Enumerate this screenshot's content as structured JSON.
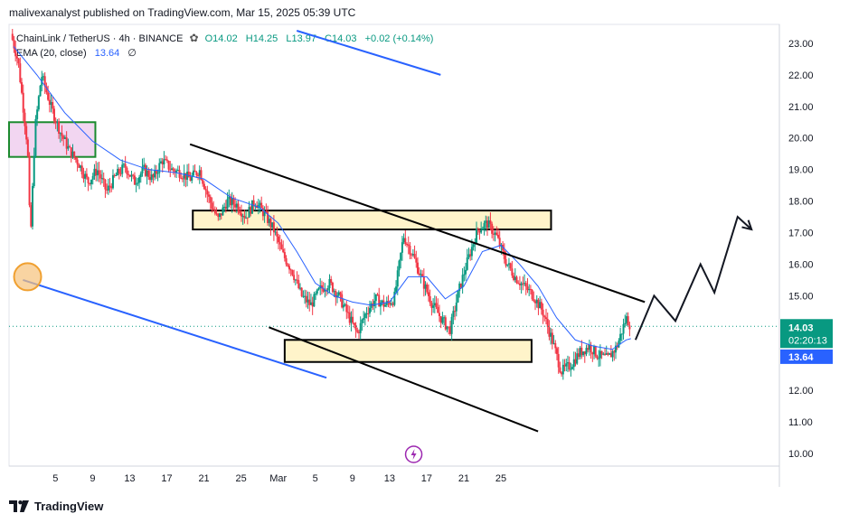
{
  "header": {
    "published": "malivexanalyst published on TradingView.com, Mar 15, 2025 05:39 UTC"
  },
  "legend": {
    "symbol": "ChainLink / TetherUS · 4h · BINANCE",
    "open": "O14.02",
    "high": "H14.25",
    "low": "L13.97",
    "close": "C14.03",
    "change": "+0.02 (+0.14%)",
    "ema_label": "EMA (20, close)",
    "ema_value": "13.64",
    "ema_suffix": "∅"
  },
  "price_axis": {
    "ticks": [
      "23.00",
      "22.00",
      "21.00",
      "20.00",
      "19.00",
      "18.00",
      "17.00",
      "16.00",
      "15.00",
      "14.00",
      "13.00",
      "12.00",
      "11.00",
      "10.00"
    ],
    "last_price": "14.03",
    "countdown": "02:20:13",
    "ema_tag": "13.64"
  },
  "time_axis": {
    "ticks": [
      "5",
      "9",
      "13",
      "17",
      "21",
      "25",
      "Mar",
      "5",
      "9",
      "13",
      "17",
      "21",
      "25"
    ]
  },
  "footer": {
    "brand": "TradingView"
  },
  "colors": {
    "up": "#089981",
    "down": "#f23645",
    "ema": "#2962ff",
    "channel": "#2962ff",
    "zone_fill": "#fff3c4",
    "supply_fill": "#f1d1f0",
    "supply_border": "#1b8a2e",
    "price_tag": "#089981",
    "ema_tag": "#2962ff"
  },
  "chart_data": {
    "type": "candlestick",
    "symbol": "ChainLink / TetherUS",
    "interval": "4h",
    "exchange": "BINANCE",
    "ylim": [
      9.6,
      23.6
    ],
    "y_ticks": [
      10,
      11,
      12,
      13,
      14,
      15,
      16,
      17,
      18,
      19,
      20,
      21,
      22,
      23
    ],
    "x_range_days": [
      0,
      83
    ],
    "x_ticks": [
      {
        "label": "5",
        "day": 5
      },
      {
        "label": "9",
        "day": 9
      },
      {
        "label": "13",
        "day": 13
      },
      {
        "label": "17",
        "day": 17
      },
      {
        "label": "21",
        "day": 21
      },
      {
        "label": "25",
        "day": 25
      },
      {
        "label": "Mar",
        "day": 29
      },
      {
        "label": "5",
        "day": 33
      },
      {
        "label": "9",
        "day": 37
      },
      {
        "label": "13",
        "day": 41
      },
      {
        "label": "17",
        "day": 45
      },
      {
        "label": "21",
        "day": 49
      },
      {
        "label": "25",
        "day": 53
      }
    ],
    "price_path": [
      [
        0.2,
        23.3
      ],
      [
        1,
        22.4
      ],
      [
        2,
        19.7
      ],
      [
        2.3,
        16.7
      ],
      [
        2.8,
        20.3
      ],
      [
        3.5,
        22.0
      ],
      [
        4.5,
        21.0
      ],
      [
        5.5,
        20.2
      ],
      [
        6.5,
        19.6
      ],
      [
        7.5,
        19.2
      ],
      [
        8.5,
        18.6
      ],
      [
        9.5,
        19.0
      ],
      [
        10.5,
        18.3
      ],
      [
        11.5,
        18.8
      ],
      [
        12.5,
        19.1
      ],
      [
        13.5,
        18.6
      ],
      [
        14.5,
        19.0
      ],
      [
        15.5,
        18.7
      ],
      [
        16.5,
        19.3
      ],
      [
        17.5,
        19.0
      ],
      [
        18.5,
        18.9
      ],
      [
        19.5,
        18.7
      ],
      [
        20.5,
        19.0
      ],
      [
        21.5,
        18.1
      ],
      [
        22.5,
        17.4
      ],
      [
        23.5,
        18.0
      ],
      [
        24.5,
        17.9
      ],
      [
        25.5,
        17.5
      ],
      [
        26.5,
        18.0
      ],
      [
        27.5,
        17.6
      ],
      [
        28.5,
        17.1
      ],
      [
        29.5,
        16.3
      ],
      [
        30.5,
        15.8
      ],
      [
        31.5,
        15.0
      ],
      [
        32.5,
        14.7
      ],
      [
        33.5,
        15.2
      ],
      [
        34.5,
        15.4
      ],
      [
        35.5,
        15.0
      ],
      [
        36.5,
        14.4
      ],
      [
        37.5,
        13.8
      ],
      [
        38.5,
        14.5
      ],
      [
        39.5,
        14.9
      ],
      [
        40.5,
        14.7
      ],
      [
        41.5,
        14.9
      ],
      [
        42.5,
        16.9
      ],
      [
        43.5,
        16.3
      ],
      [
        44.5,
        15.5
      ],
      [
        45.5,
        14.8
      ],
      [
        46.5,
        14.3
      ],
      [
        47.5,
        13.9
      ],
      [
        48.5,
        15.2
      ],
      [
        49.5,
        16.2
      ],
      [
        50.5,
        17.1
      ],
      [
        51.5,
        17.3
      ],
      [
        52.5,
        16.9
      ],
      [
        53.5,
        16.1
      ],
      [
        54.5,
        15.6
      ],
      [
        55.5,
        15.3
      ],
      [
        56.5,
        15.0
      ],
      [
        57.5,
        14.5
      ],
      [
        58.5,
        13.6
      ],
      [
        59.5,
        12.6
      ],
      [
        60.5,
        12.8
      ],
      [
        61.5,
        13.2
      ],
      [
        62.5,
        13.4
      ],
      [
        63.5,
        13.1
      ],
      [
        64.5,
        13.0
      ],
      [
        65.5,
        13.4
      ],
      [
        66.5,
        14.3
      ],
      [
        67.0,
        14.03
      ]
    ],
    "ema": {
      "label": "EMA (20, close)",
      "last": 13.64,
      "path": [
        [
          0.5,
          22.9
        ],
        [
          3,
          22.0
        ],
        [
          6,
          20.8
        ],
        [
          9,
          19.9
        ],
        [
          12,
          19.3
        ],
        [
          15,
          19.0
        ],
        [
          18,
          18.9
        ],
        [
          21,
          18.7
        ],
        [
          24,
          18.1
        ],
        [
          27,
          17.8
        ],
        [
          29,
          17.3
        ],
        [
          31,
          16.4
        ],
        [
          33,
          15.4
        ],
        [
          35,
          15.0
        ],
        [
          37,
          14.8
        ],
        [
          39,
          14.7
        ],
        [
          41,
          14.8
        ],
        [
          43,
          15.6
        ],
        [
          45,
          15.6
        ],
        [
          47,
          14.9
        ],
        [
          49,
          15.3
        ],
        [
          51,
          16.4
        ],
        [
          53,
          16.6
        ],
        [
          55,
          16.0
        ],
        [
          57,
          15.3
        ],
        [
          59,
          14.3
        ],
        [
          61,
          13.6
        ],
        [
          63,
          13.4
        ],
        [
          65,
          13.3
        ],
        [
          66.5,
          13.6
        ],
        [
          67,
          13.64
        ]
      ]
    },
    "annotations": {
      "channel_lines": [
        {
          "color": "#2962ff",
          "from": [
            1.5,
            15.5
          ],
          "to": [
            34.2,
            12.4
          ]
        },
        {
          "color": "#2962ff",
          "from": [
            31.0,
            23.4
          ],
          "to": [
            46.5,
            22.0
          ]
        },
        {
          "color": "#000000",
          "from": [
            19.5,
            19.8
          ],
          "to": [
            68.5,
            14.8
          ]
        },
        {
          "color": "#000000",
          "from": [
            28.0,
            14.0
          ],
          "to": [
            57.0,
            10.7
          ]
        }
      ],
      "zones": [
        {
          "fill": "#f1d1f0",
          "border": "#1b8a2e",
          "from": [
            0,
            19.4
          ],
          "to": [
            9.3,
            20.5
          ]
        },
        {
          "fill": "#fff3c4",
          "border": "#000000",
          "from": [
            19.8,
            17.1
          ],
          "to": [
            58.4,
            17.7
          ]
        },
        {
          "fill": "#fff3c4",
          "border": "#000000",
          "from": [
            29.7,
            12.9
          ],
          "to": [
            56.3,
            13.6
          ]
        }
      ],
      "projection_path": [
        [
          67.5,
          13.6
        ],
        [
          69.5,
          15.0
        ],
        [
          71.8,
          14.2
        ],
        [
          74.5,
          16.0
        ],
        [
          76.0,
          15.1
        ],
        [
          78.5,
          17.5
        ],
        [
          80.0,
          17.1
        ]
      ],
      "circle_marker": {
        "center": [
          2.0,
          15.6
        ],
        "color": "#f0a030"
      },
      "current_price_line": 14.03
    }
  }
}
